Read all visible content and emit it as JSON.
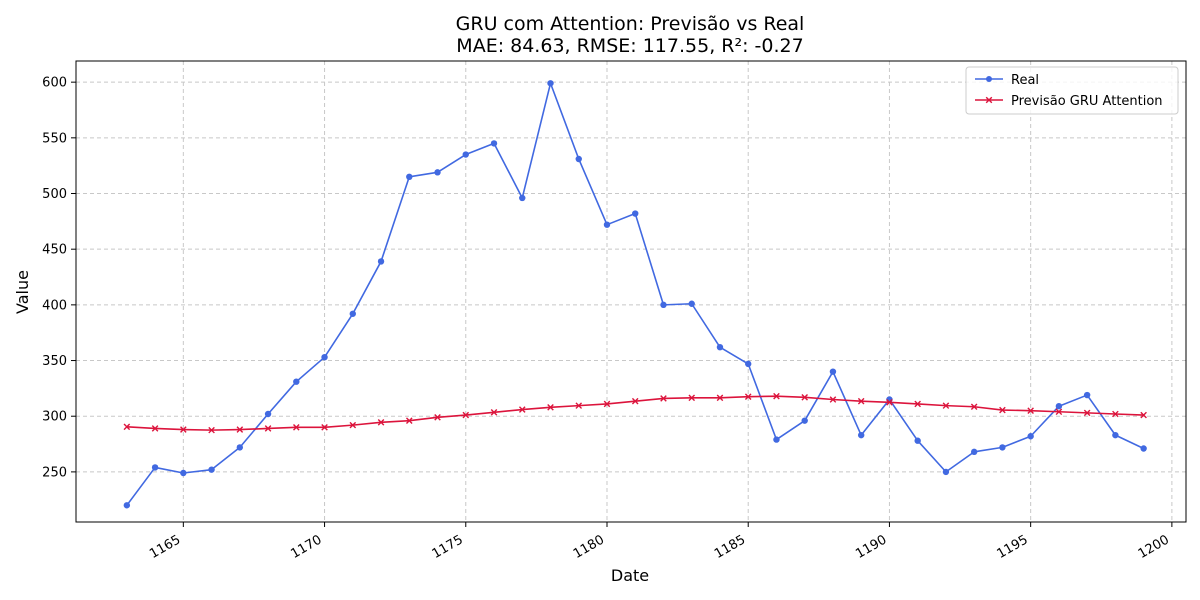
{
  "chart_data": {
    "type": "line",
    "title": "GRU com Attention: Previsão vs Real",
    "subtitle": "MAE: 84.63, RMSE: 117.55, R²: -0.27",
    "xlabel": "Date",
    "ylabel": "Value",
    "xlim": [
      1161.2,
      1200.5
    ],
    "ylim": [
      205,
      619
    ],
    "x_ticks": [
      1165,
      1170,
      1175,
      1180,
      1185,
      1190,
      1195,
      1200
    ],
    "y_ticks": [
      250,
      300,
      350,
      400,
      450,
      500,
      550,
      600
    ],
    "grid": true,
    "legend_position": "top-right",
    "x": [
      1163,
      1164,
      1165,
      1166,
      1167,
      1168,
      1169,
      1170,
      1171,
      1172,
      1173,
      1174,
      1175,
      1176,
      1177,
      1178,
      1179,
      1180,
      1181,
      1182,
      1183,
      1184,
      1185,
      1186,
      1187,
      1188,
      1189,
      1190,
      1191,
      1192,
      1193,
      1194,
      1195,
      1196,
      1197,
      1198,
      1199
    ],
    "series": [
      {
        "name": "Real",
        "color": "#4169e1",
        "marker": "circle",
        "values": [
          220,
          254,
          249,
          252,
          272,
          302,
          331,
          353,
          392,
          439,
          515,
          519,
          535,
          545,
          496,
          599,
          531,
          472,
          482,
          400,
          401,
          362,
          347,
          279,
          296,
          340,
          283,
          315,
          278,
          250,
          268,
          272,
          282,
          309,
          319,
          283,
          271
        ]
      },
      {
        "name": "Previsão GRU Attention",
        "color": "#dc143c",
        "marker": "x",
        "values": [
          290.5,
          289,
          288,
          287.5,
          288,
          289,
          290,
          290,
          292,
          294.5,
          296,
          299,
          301,
          303.5,
          306,
          308,
          309.5,
          311,
          313.5,
          316,
          316.5,
          316.5,
          317.5,
          318,
          317,
          315,
          313.5,
          312.5,
          311,
          309.5,
          308.5,
          305.5,
          305,
          304,
          303,
          302,
          301
        ]
      }
    ]
  }
}
